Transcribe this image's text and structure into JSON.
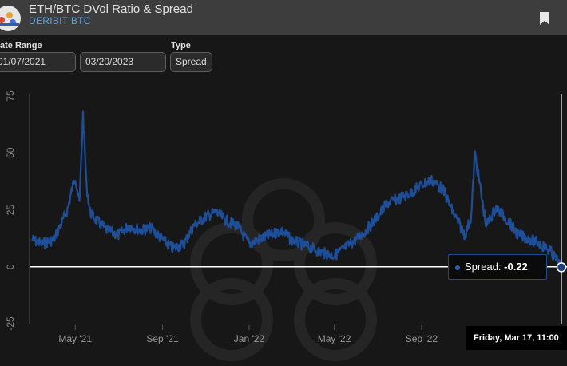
{
  "header": {
    "title": "ETH/BTC DVol Ratio & Spread",
    "subtitle": "DERIBIT BTC"
  },
  "controls": {
    "date_range_label": "ate Range",
    "start_date": "01/07/2021",
    "end_date": "03/20/2023",
    "type_label": "Type",
    "type_value": "Spread"
  },
  "tooltip": {
    "series_label": "Spread: ",
    "value": "-0.22",
    "date_label": "Friday, Mar 17, 11:00"
  },
  "colors": {
    "series": "#1f4e98",
    "background": "#171717",
    "header": "#3d3d3d",
    "accent": "#5ba3e8"
  },
  "chart_data": {
    "type": "area",
    "title": "",
    "xlabel": "",
    "ylabel": "",
    "ylim": [
      -25,
      75
    ],
    "y_ticks": [
      "75",
      "50",
      "25",
      "0",
      "-25"
    ],
    "x_ticks": [
      "May '21",
      "Sep '21",
      "Jan '22",
      "May '22",
      "Sep '22"
    ],
    "x_tick_dates": [
      "2021-05-01",
      "2021-09-01",
      "2022-01-01",
      "2022-05-01",
      "2022-09-01"
    ],
    "x_range": [
      "2021-03-01",
      "2023-03-17"
    ],
    "grid": false,
    "series": [
      {
        "x": [
          "2021-03-01",
          "2021-03-15",
          "2021-04-01",
          "2021-04-10",
          "2021-04-20",
          "2021-05-01",
          "2021-05-07",
          "2021-05-12",
          "2021-05-17",
          "2021-05-22",
          "2021-06-01",
          "2021-06-15",
          "2021-07-01",
          "2021-07-15",
          "2021-08-01",
          "2021-08-15",
          "2021-09-01",
          "2021-09-15",
          "2021-10-01",
          "2021-10-15",
          "2021-11-01",
          "2021-11-15",
          "2021-12-01",
          "2021-12-15",
          "2022-01-01",
          "2022-01-15",
          "2022-02-01",
          "2022-02-15",
          "2022-03-01",
          "2022-03-15",
          "2022-04-01",
          "2022-04-15",
          "2022-05-01",
          "2022-05-15",
          "2022-06-01",
          "2022-06-15",
          "2022-07-01",
          "2022-07-15",
          "2022-08-01",
          "2022-08-15",
          "2022-09-01",
          "2022-09-15",
          "2022-10-01",
          "2022-10-15",
          "2022-11-01",
          "2022-11-10",
          "2022-11-15",
          "2022-12-01",
          "2022-12-15",
          "2023-01-01",
          "2023-01-15",
          "2023-02-01",
          "2023-02-15",
          "2023-03-01",
          "2023-03-10",
          "2023-03-17"
        ],
        "y": [
          12,
          10,
          12,
          18,
          25,
          40,
          28,
          67,
          35,
          24,
          20,
          16,
          14,
          18,
          16,
          17,
          12,
          8,
          10,
          18,
          22,
          24,
          20,
          18,
          10,
          12,
          14,
          16,
          12,
          10,
          8,
          6,
          5,
          8,
          12,
          16,
          22,
          28,
          30,
          32,
          36,
          38,
          34,
          24,
          14,
          22,
          50,
          18,
          26,
          20,
          14,
          12,
          10,
          7,
          3,
          -0.22
        ]
      }
    ]
  }
}
